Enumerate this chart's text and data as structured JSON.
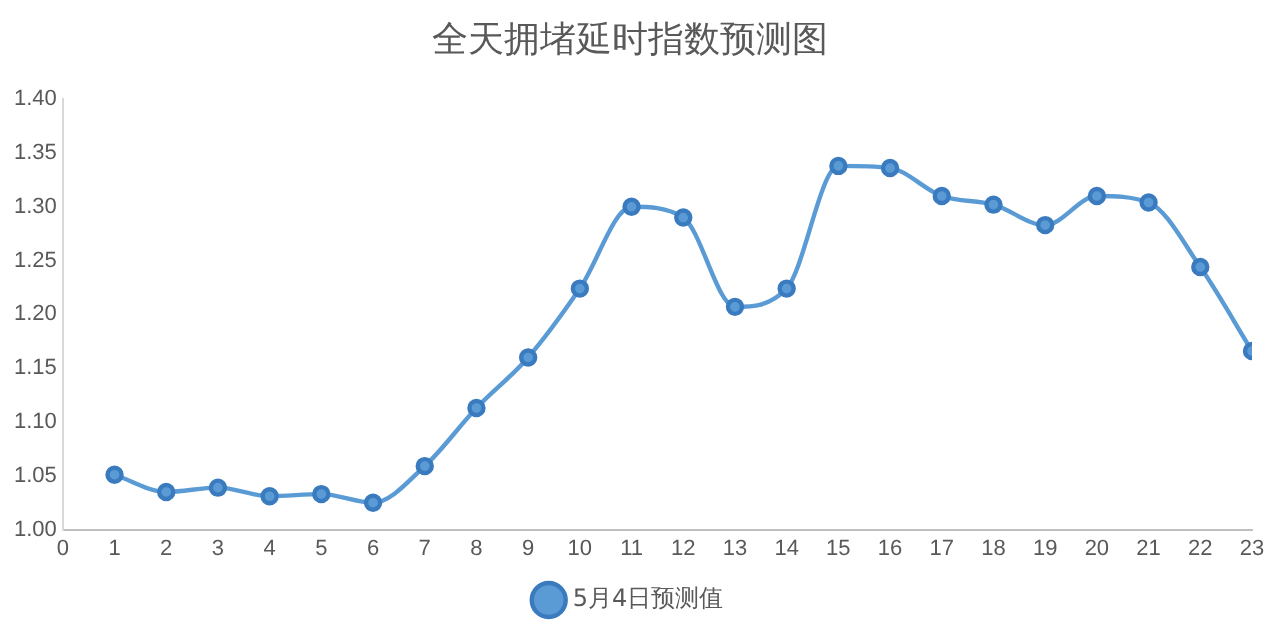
{
  "chart_data": {
    "type": "line",
    "title": "全天拥堵延时指数预测图",
    "x": [
      1,
      2,
      3,
      4,
      5,
      6,
      7,
      8,
      9,
      10,
      11,
      12,
      13,
      14,
      15,
      16,
      17,
      18,
      19,
      20,
      21,
      22,
      23
    ],
    "series": [
      {
        "name": "5月4日预测值",
        "color": "#5b9bd5",
        "values": [
          1.051,
          1.035,
          1.039,
          1.031,
          1.033,
          1.025,
          1.059,
          1.113,
          1.16,
          1.224,
          1.3,
          1.29,
          1.207,
          1.224,
          1.338,
          1.336,
          1.31,
          1.302,
          1.283,
          1.31,
          1.304,
          1.244,
          1.166
        ]
      }
    ],
    "xlim": [
      0,
      23
    ],
    "xticks": [
      0,
      1,
      2,
      3,
      4,
      5,
      6,
      7,
      8,
      9,
      10,
      11,
      12,
      13,
      14,
      15,
      16,
      17,
      18,
      19,
      20,
      21,
      22,
      23
    ],
    "ylim": [
      1,
      1.4
    ],
    "yticks": [
      {
        "value": 1,
        "label": "1.00"
      },
      {
        "value": 1.05,
        "label": "1.05"
      },
      {
        "value": 1.1,
        "label": "1.10"
      },
      {
        "value": 1.15,
        "label": "1.15"
      },
      {
        "value": 1.2,
        "label": "1.20"
      },
      {
        "value": 1.25,
        "label": "1.25"
      },
      {
        "value": 1.3,
        "label": "1.30"
      },
      {
        "value": 1.35,
        "label": "1.35"
      },
      {
        "value": 1.4,
        "label": "1.40"
      }
    ],
    "grid": false,
    "legend": "bottom",
    "marker": "circle",
    "line_style": "solid"
  }
}
